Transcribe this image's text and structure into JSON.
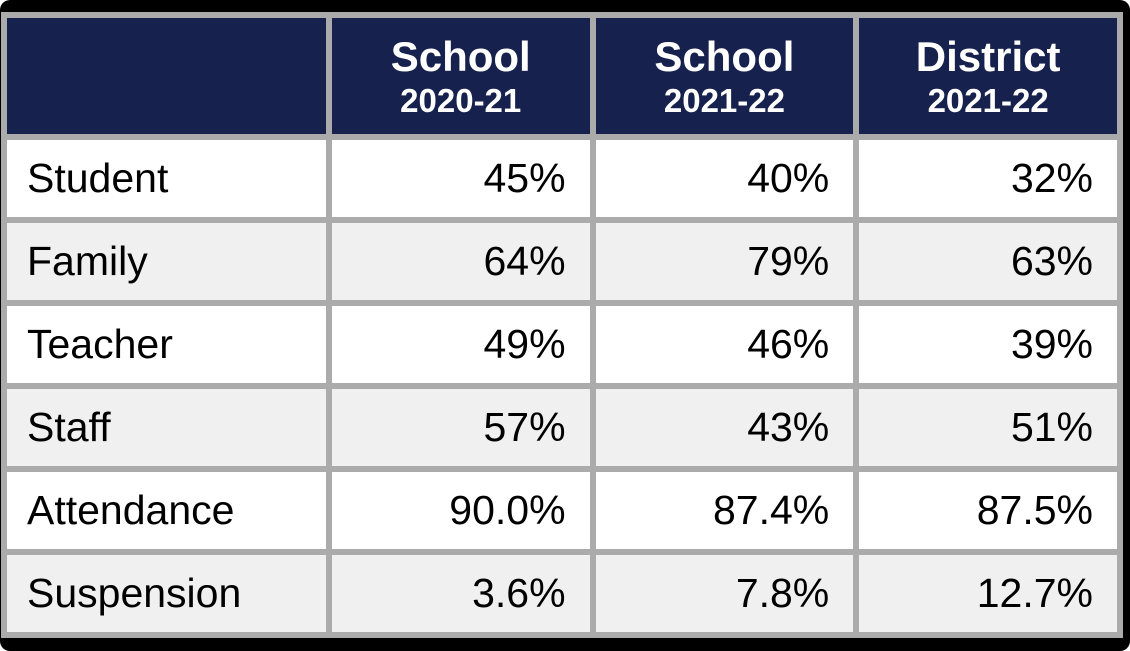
{
  "chart_data": {
    "type": "table",
    "columns": [
      {
        "label": "",
        "sublabel": ""
      },
      {
        "label": "School",
        "sublabel": "2020-21"
      },
      {
        "label": "School",
        "sublabel": "2021-22"
      },
      {
        "label": "District",
        "sublabel": "2021-22"
      }
    ],
    "rows": [
      {
        "label": "Student",
        "values": [
          "45%",
          "40%",
          "32%"
        ]
      },
      {
        "label": "Family",
        "values": [
          "64%",
          "79%",
          "63%"
        ]
      },
      {
        "label": "Teacher",
        "values": [
          "49%",
          "46%",
          "39%"
        ]
      },
      {
        "label": "Staff",
        "values": [
          "57%",
          "43%",
          "51%"
        ]
      },
      {
        "label": "Attendance",
        "values": [
          "90.0%",
          "87.4%",
          "87.5%"
        ]
      },
      {
        "label": "Suspension",
        "values": [
          "3.6%",
          "7.8%",
          "12.7%"
        ]
      }
    ],
    "layout": {
      "header_position": "top",
      "alternating_rows": true,
      "value_alignment": "right"
    }
  },
  "colors": {
    "header_background": "#16214d",
    "header_text": "#ffffff",
    "grid_line": "#ababab",
    "row_even": "#ffffff",
    "row_odd": "#f0f0f0",
    "body_text": "#000000",
    "outer_frame": "#000000"
  }
}
